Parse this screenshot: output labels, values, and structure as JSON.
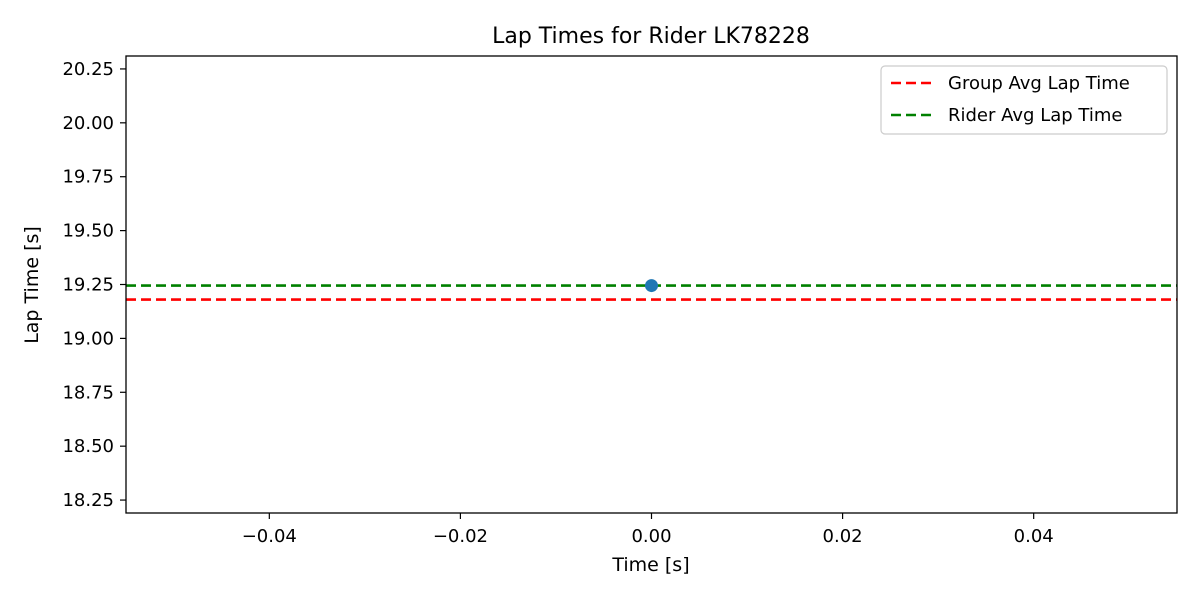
{
  "chart_data": {
    "type": "scatter",
    "title": "Lap Times for Rider LK78228",
    "xlabel": "Time [s]",
    "ylabel": "Lap Time [s]",
    "xlim": [
      -0.055,
      0.055
    ],
    "ylim": [
      18.19,
      20.31
    ],
    "xticks": [
      -0.04,
      -0.02,
      0.0,
      0.02,
      0.04
    ],
    "xtick_labels": [
      "−0.04",
      "−0.02",
      "0.00",
      "0.02",
      "0.04"
    ],
    "yticks": [
      18.25,
      18.5,
      18.75,
      19.0,
      19.25,
      19.5,
      19.75,
      20.0,
      20.25
    ],
    "ytick_labels": [
      "18.25",
      "18.50",
      "18.75",
      "19.00",
      "19.25",
      "19.50",
      "19.75",
      "20.00",
      "20.25"
    ],
    "grid": false,
    "legend_position": "top-right",
    "points": [
      {
        "x": 0.0,
        "y": 19.245,
        "color": "#1f77b4"
      }
    ],
    "reference_lines": [
      {
        "name": "Group Avg Lap Time",
        "y": 19.18,
        "color": "#ff0000",
        "style": "dashed"
      },
      {
        "name": "Rider Avg Lap Time",
        "y": 19.245,
        "color": "#008000",
        "style": "dashed"
      }
    ]
  }
}
